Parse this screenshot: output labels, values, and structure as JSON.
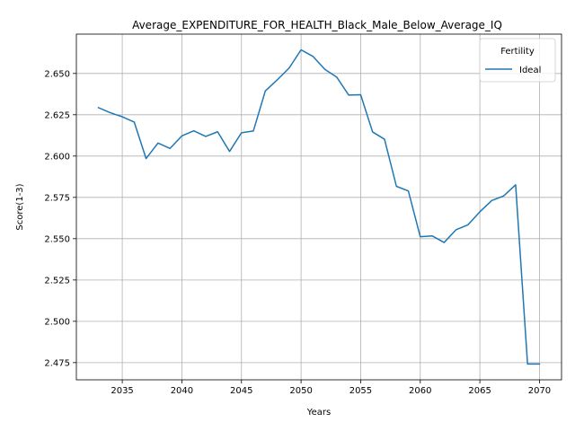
{
  "chart_data": {
    "type": "line",
    "title": "Average_EXPENDITURE_FOR_HEALTH_Black_Male_Below_Average_IQ",
    "xlabel": "Years",
    "ylabel": "Score(1-3)",
    "xlim": [
      2031.15,
      2071.85
    ],
    "ylim": [
      2.4646,
      2.6738
    ],
    "xticks": [
      2035,
      2040,
      2045,
      2050,
      2055,
      2060,
      2065,
      2070
    ],
    "xtick_labels": [
      "2035",
      "2040",
      "2045",
      "2050",
      "2055",
      "2060",
      "2065",
      "2070"
    ],
    "yticks": [
      2.475,
      2.5,
      2.525,
      2.55,
      2.575,
      2.6,
      2.625,
      2.65
    ],
    "ytick_labels": [
      "2.475",
      "2.500",
      "2.525",
      "2.550",
      "2.575",
      "2.600",
      "2.625",
      "2.650"
    ],
    "grid": true,
    "legend": {
      "title": "Fertility",
      "placement": "top-right"
    },
    "series": [
      {
        "name": "Ideal",
        "color": "#1f77b4",
        "x": [
          2033,
          2034,
          2035,
          2036,
          2037,
          2038,
          2039,
          2040,
          2041,
          2042,
          2043,
          2044,
          2045,
          2046,
          2047,
          2048,
          2049,
          2050,
          2051,
          2052,
          2053,
          2054,
          2055,
          2056,
          2057,
          2058,
          2059,
          2060,
          2061,
          2062,
          2063,
          2064,
          2065,
          2066,
          2067,
          2068,
          2069,
          2070
        ],
        "values": [
          2.6293,
          2.6262,
          2.6238,
          2.6206,
          2.5985,
          2.6079,
          2.6046,
          2.6122,
          2.6153,
          2.6119,
          2.6147,
          2.6028,
          2.6141,
          2.6152,
          2.6394,
          2.6461,
          2.6533,
          2.6643,
          2.6603,
          2.6525,
          2.6477,
          2.6369,
          2.6371,
          2.6146,
          2.6102,
          2.5817,
          2.5789,
          2.5512,
          2.5517,
          2.5477,
          2.5554,
          2.5584,
          2.5663,
          2.5731,
          2.5759,
          2.5826,
          2.4742,
          2.4742
        ]
      }
    ]
  }
}
